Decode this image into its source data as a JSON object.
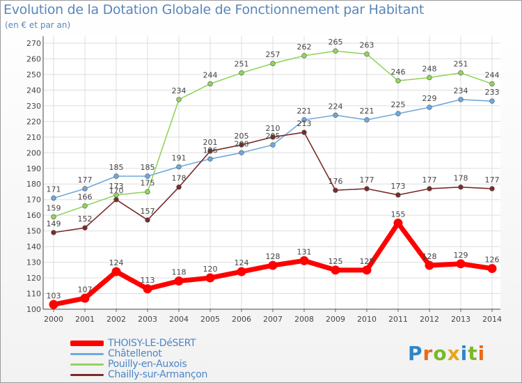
{
  "header": {
    "title": "Evolution de la Dotation Globale de Fonctionnement par Habitant",
    "subtitle": "(en € et par an)"
  },
  "logo": {
    "text": "Proxiti",
    "letters": [
      {
        "ch": "P",
        "color": "#2f86c8"
      },
      {
        "ch": "r",
        "color": "#e86a1a"
      },
      {
        "ch": "o",
        "color": "#7ab82a"
      },
      {
        "ch": "x",
        "color": "#e8a61a"
      },
      {
        "ch": "i",
        "color": "#2f86c8"
      },
      {
        "ch": "t",
        "color": "#7ab82a"
      },
      {
        "ch": "i",
        "color": "#e86a1a"
      }
    ]
  },
  "chart_data": {
    "type": "line",
    "title": "Evolution de la Dotation Globale de Fonctionnement par Habitant",
    "subtitle": "(en € et par an)",
    "x": [
      2000,
      2001,
      2002,
      2003,
      2004,
      2005,
      2006,
      2007,
      2008,
      2009,
      2010,
      2011,
      2012,
      2013,
      2014
    ],
    "ylim": [
      100,
      270
    ],
    "yticks": [
      100,
      110,
      120,
      130,
      140,
      150,
      160,
      170,
      180,
      190,
      200,
      210,
      220,
      230,
      240,
      250,
      260,
      270
    ],
    "grid": true,
    "legend_position": "bottom-left",
    "series": [
      {
        "name": "THOISY-LE-DéSERT",
        "color": "#ff0000",
        "labels_above": true,
        "values": [
          103,
          107,
          124,
          113,
          118,
          120,
          124,
          128,
          131,
          125,
          125,
          155,
          128,
          129,
          126
        ]
      },
      {
        "name": "Châtellenot",
        "color": "#6fa8dc",
        "labels_above": true,
        "values": [
          171,
          177,
          185,
          185,
          191,
          196,
          200,
          205,
          221,
          224,
          221,
          225,
          229,
          234,
          233
        ]
      },
      {
        "name": "Pouilly-en-Auxois",
        "color": "#93d35f",
        "labels_above": true,
        "values": [
          159,
          166,
          173,
          175,
          234,
          244,
          251,
          257,
          262,
          265,
          263,
          246,
          248,
          251,
          244
        ]
      },
      {
        "name": "Chailly-sur-Armançon",
        "color": "#7b2a2a",
        "labels_above": true,
        "values": [
          149,
          152,
          170,
          157,
          178,
          201,
          205,
          210,
          213,
          176,
          177,
          173,
          177,
          178,
          177
        ]
      }
    ]
  }
}
